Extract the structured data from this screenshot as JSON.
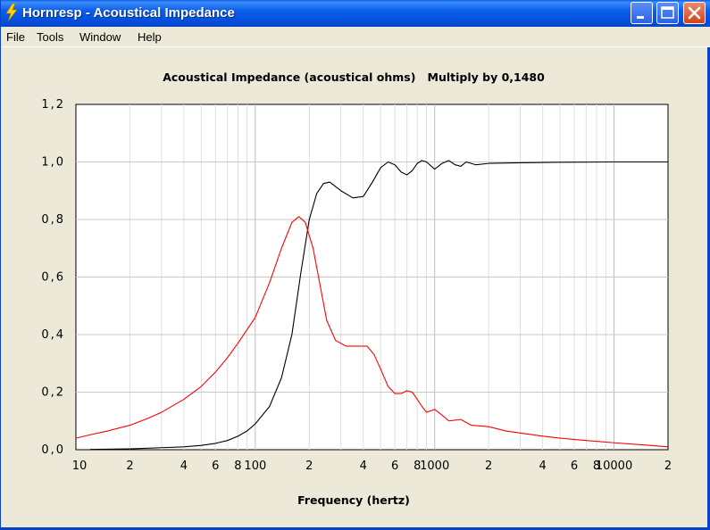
{
  "window": {
    "title": "Hornresp - Acoustical Impedance"
  },
  "menu": [
    "File",
    "Tools",
    "Window",
    "Help"
  ],
  "colors": {
    "titlebar": "#0a5ee8",
    "throat_resistance": "#000000",
    "throat_reactance": "#ff0000",
    "grid": "#c8c8c8"
  },
  "icons": [
    "lightning-icon",
    "minimize-icon",
    "maximize-icon",
    "close-icon"
  ],
  "chart_data": {
    "type": "line",
    "title": "Acoustical Impedance (acoustical ohms)   Multiply by 0,1480",
    "xlabel": "Frequency (hertz)",
    "ylabel": "",
    "xscale": "log",
    "xlim": [
      10,
      20000
    ],
    "ylim": [
      0,
      1.2
    ],
    "grid": true,
    "xtick_labels": [
      "10",
      "2",
      "4",
      "6",
      "8",
      "100",
      "2",
      "4",
      "6",
      "8",
      "1000",
      "2",
      "4",
      "6",
      "8",
      "10000",
      "2"
    ],
    "xtick_values": [
      10,
      20,
      40,
      60,
      80,
      100,
      200,
      400,
      600,
      800,
      1000,
      2000,
      4000,
      6000,
      8000,
      10000,
      20000
    ],
    "ytick_labels": [
      "0,0",
      "0,2",
      "0,4",
      "0,6",
      "0,8",
      "1,0",
      "1,2"
    ],
    "ytick_values": [
      0,
      0.2,
      0.4,
      0.6,
      0.8,
      1.0,
      1.2
    ],
    "series": [
      {
        "color": "#000000",
        "points": [
          [
            12,
            0.001
          ],
          [
            20,
            0.003
          ],
          [
            30,
            0.007
          ],
          [
            40,
            0.01
          ],
          [
            50,
            0.015
          ],
          [
            60,
            0.022
          ],
          [
            70,
            0.032
          ],
          [
            80,
            0.047
          ],
          [
            90,
            0.065
          ],
          [
            100,
            0.09
          ],
          [
            120,
            0.15
          ],
          [
            140,
            0.25
          ],
          [
            160,
            0.4
          ],
          [
            180,
            0.62
          ],
          [
            200,
            0.8
          ],
          [
            220,
            0.89
          ],
          [
            240,
            0.925
          ],
          [
            260,
            0.93
          ],
          [
            300,
            0.9
          ],
          [
            350,
            0.875
          ],
          [
            400,
            0.88
          ],
          [
            450,
            0.93
          ],
          [
            500,
            0.98
          ],
          [
            550,
            1.0
          ],
          [
            600,
            0.99
          ],
          [
            650,
            0.965
          ],
          [
            700,
            0.955
          ],
          [
            750,
            0.97
          ],
          [
            800,
            0.995
          ],
          [
            850,
            1.005
          ],
          [
            900,
            1.0
          ],
          [
            1000,
            0.975
          ],
          [
            1100,
            0.995
          ],
          [
            1200,
            1.005
          ],
          [
            1300,
            0.99
          ],
          [
            1400,
            0.985
          ],
          [
            1500,
            1.0
          ],
          [
            1700,
            0.99
          ],
          [
            2000,
            0.995
          ],
          [
            3000,
            0.997
          ],
          [
            5000,
            0.999
          ],
          [
            10000,
            1.0
          ],
          [
            20000,
            1.0
          ]
        ]
      },
      {
        "color": "#ff0000",
        "points": [
          [
            10,
            0.04
          ],
          [
            12,
            0.052
          ],
          [
            15,
            0.065
          ],
          [
            20,
            0.085
          ],
          [
            25,
            0.108
          ],
          [
            30,
            0.13
          ],
          [
            40,
            0.175
          ],
          [
            50,
            0.22
          ],
          [
            60,
            0.27
          ],
          [
            70,
            0.32
          ],
          [
            80,
            0.37
          ],
          [
            100,
            0.46
          ],
          [
            120,
            0.58
          ],
          [
            140,
            0.7
          ],
          [
            160,
            0.79
          ],
          [
            175,
            0.81
          ],
          [
            190,
            0.79
          ],
          [
            210,
            0.7
          ],
          [
            230,
            0.57
          ],
          [
            250,
            0.45
          ],
          [
            280,
            0.38
          ],
          [
            320,
            0.36
          ],
          [
            380,
            0.36
          ],
          [
            420,
            0.36
          ],
          [
            460,
            0.33
          ],
          [
            500,
            0.28
          ],
          [
            550,
            0.22
          ],
          [
            600,
            0.195
          ],
          [
            650,
            0.195
          ],
          [
            700,
            0.205
          ],
          [
            750,
            0.2
          ],
          [
            800,
            0.175
          ],
          [
            850,
            0.15
          ],
          [
            900,
            0.13
          ],
          [
            1000,
            0.14
          ],
          [
            1100,
            0.12
          ],
          [
            1200,
            0.1
          ],
          [
            1400,
            0.105
          ],
          [
            1600,
            0.085
          ],
          [
            2000,
            0.08
          ],
          [
            2500,
            0.065
          ],
          [
            3000,
            0.058
          ],
          [
            4000,
            0.047
          ],
          [
            5000,
            0.04
          ],
          [
            7000,
            0.032
          ],
          [
            10000,
            0.024
          ],
          [
            15000,
            0.016
          ],
          [
            20000,
            0.01
          ]
        ]
      }
    ]
  }
}
